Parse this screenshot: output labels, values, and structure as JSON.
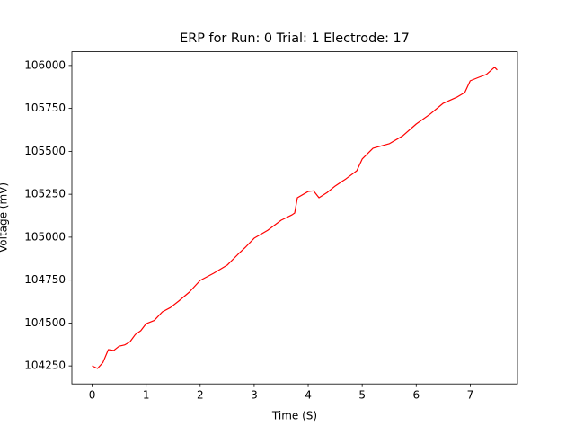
{
  "chart_data": {
    "type": "line",
    "title": "ERP for Run: 0 Trial: 1 Electrode: 17",
    "x_label": "Time (S)",
    "y_label": "Voltage (mV)",
    "x": [
      0,
      0.1,
      0.2,
      0.3,
      0.4,
      0.5,
      0.6,
      0.7,
      0.8,
      0.9,
      1.0,
      1.15,
      1.3,
      1.45,
      1.6,
      1.8,
      2.0,
      2.25,
      2.5,
      2.7,
      2.85,
      3.0,
      3.25,
      3.5,
      3.7,
      3.75,
      3.8,
      4.0,
      4.1,
      4.2,
      4.35,
      4.5,
      4.7,
      4.9,
      5.0,
      5.2,
      5.5,
      5.75,
      6.0,
      6.25,
      6.5,
      6.75,
      6.9,
      7.0,
      7.15,
      7.3,
      7.45,
      7.5
    ],
    "series": [
      {
        "name": "ERP",
        "color": "#ff0000",
        "values": [
          104250,
          104235,
          104270,
          104345,
          104340,
          104365,
          104372,
          104390,
          104433,
          104455,
          104496,
          104515,
          104565,
          104590,
          104627,
          104680,
          104748,
          104790,
          104837,
          104900,
          104945,
          104994,
          105040,
          105099,
          105130,
          105141,
          105230,
          105266,
          105270,
          105230,
          105260,
          105298,
          105340,
          105387,
          105455,
          105518,
          105544,
          105590,
          105659,
          105715,
          105780,
          105815,
          105843,
          105911,
          105930,
          105948,
          105990,
          105974
        ]
      }
    ],
    "xlim": [
      -0.375,
      7.875
    ],
    "ylim": [
      104145,
      106080
    ],
    "xticks": [
      0,
      1,
      2,
      3,
      4,
      5,
      6,
      7
    ],
    "yticks": [
      104250,
      104500,
      104750,
      105000,
      105250,
      105500,
      105750,
      106000
    ]
  }
}
